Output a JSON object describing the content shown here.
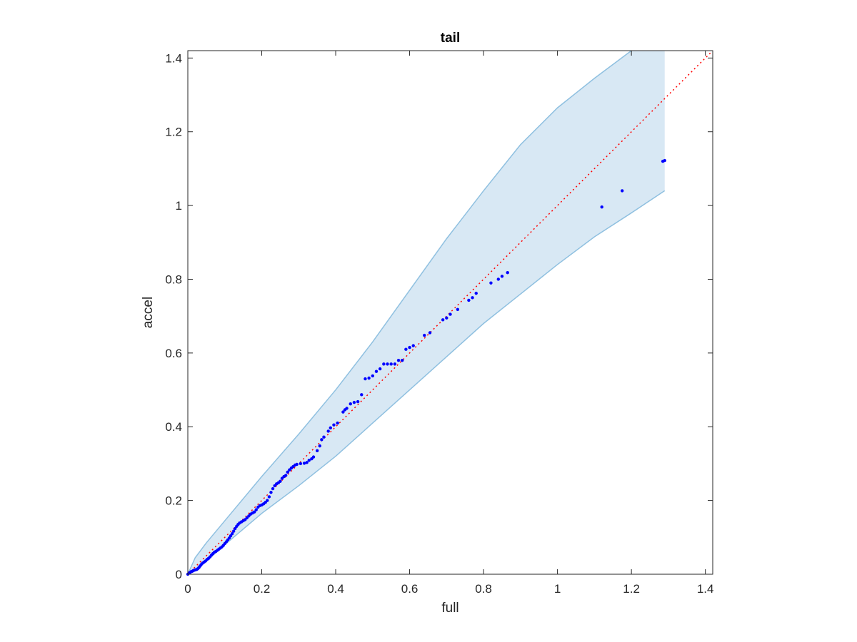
{
  "chart_data": {
    "type": "scatter",
    "title": "tail",
    "xlabel": "full",
    "ylabel": "accel",
    "xlim": [
      0,
      1.42
    ],
    "ylim": [
      0,
      1.42
    ],
    "xticks": [
      0,
      0.2,
      0.4,
      0.6,
      0.8,
      1,
      1.2,
      1.4
    ],
    "yticks": [
      0,
      0.2,
      0.4,
      0.6,
      0.8,
      1,
      1.2,
      1.4
    ],
    "xtick_labels": [
      "0",
      "0.2",
      "0.4",
      "0.6",
      "0.8",
      "1",
      "1.2",
      "1.4"
    ],
    "ytick_labels": [
      "0",
      "0.2",
      "0.4",
      "0.6",
      "0.8",
      "1",
      "1.2",
      "1.4"
    ],
    "grid": false,
    "colors": {
      "points": "#0000ff",
      "reference_line": "#ff0000",
      "band_fill": "#d8e8f4",
      "band_edge": "#8fc0e0",
      "axes": "#262626"
    },
    "band": {
      "upper": [
        [
          0,
          0
        ],
        [
          0.02,
          0.045
        ],
        [
          0.05,
          0.085
        ],
        [
          0.1,
          0.145
        ],
        [
          0.2,
          0.265
        ],
        [
          0.3,
          0.38
        ],
        [
          0.4,
          0.5
        ],
        [
          0.5,
          0.63
        ],
        [
          0.6,
          0.77
        ],
        [
          0.7,
          0.91
        ],
        [
          0.8,
          1.04
        ],
        [
          0.9,
          1.165
        ],
        [
          1.0,
          1.265
        ],
        [
          1.1,
          1.345
        ],
        [
          1.2,
          1.42
        ],
        [
          1.29,
          1.42
        ]
      ],
      "lower": [
        [
          0,
          0
        ],
        [
          0.02,
          0.012
        ],
        [
          0.05,
          0.035
        ],
        [
          0.1,
          0.08
        ],
        [
          0.2,
          0.165
        ],
        [
          0.3,
          0.24
        ],
        [
          0.4,
          0.32
        ],
        [
          0.5,
          0.41
        ],
        [
          0.6,
          0.5
        ],
        [
          0.7,
          0.59
        ],
        [
          0.8,
          0.68
        ],
        [
          0.9,
          0.76
        ],
        [
          1.0,
          0.84
        ],
        [
          1.1,
          0.915
        ],
        [
          1.2,
          0.98
        ],
        [
          1.29,
          1.04
        ]
      ]
    },
    "reference_line": [
      [
        0,
        0
      ],
      [
        1.42,
        1.42
      ]
    ],
    "points": [
      [
        0.0,
        0.0
      ],
      [
        0.003,
        0.003
      ],
      [
        0.006,
        0.005
      ],
      [
        0.009,
        0.007
      ],
      [
        0.012,
        0.008
      ],
      [
        0.015,
        0.01
      ],
      [
        0.018,
        0.011
      ],
      [
        0.021,
        0.012
      ],
      [
        0.024,
        0.013
      ],
      [
        0.027,
        0.015
      ],
      [
        0.03,
        0.018
      ],
      [
        0.033,
        0.022
      ],
      [
        0.036,
        0.026
      ],
      [
        0.04,
        0.03
      ],
      [
        0.044,
        0.033
      ],
      [
        0.048,
        0.036
      ],
      [
        0.052,
        0.04
      ],
      [
        0.056,
        0.043
      ],
      [
        0.06,
        0.047
      ],
      [
        0.064,
        0.052
      ],
      [
        0.068,
        0.056
      ],
      [
        0.072,
        0.06
      ],
      [
        0.076,
        0.062
      ],
      [
        0.08,
        0.065
      ],
      [
        0.084,
        0.068
      ],
      [
        0.088,
        0.071
      ],
      [
        0.092,
        0.074
      ],
      [
        0.096,
        0.078
      ],
      [
        0.1,
        0.083
      ],
      [
        0.104,
        0.088
      ],
      [
        0.108,
        0.093
      ],
      [
        0.112,
        0.098
      ],
      [
        0.116,
        0.104
      ],
      [
        0.12,
        0.11
      ],
      [
        0.124,
        0.117
      ],
      [
        0.128,
        0.124
      ],
      [
        0.132,
        0.13
      ],
      [
        0.136,
        0.135
      ],
      [
        0.14,
        0.139
      ],
      [
        0.145,
        0.142
      ],
      [
        0.15,
        0.145
      ],
      [
        0.155,
        0.148
      ],
      [
        0.16,
        0.153
      ],
      [
        0.165,
        0.158
      ],
      [
        0.17,
        0.163
      ],
      [
        0.175,
        0.166
      ],
      [
        0.18,
        0.169
      ],
      [
        0.185,
        0.175
      ],
      [
        0.19,
        0.182
      ],
      [
        0.195,
        0.186
      ],
      [
        0.2,
        0.188
      ],
      [
        0.205,
        0.191
      ],
      [
        0.21,
        0.195
      ],
      [
        0.215,
        0.2
      ],
      [
        0.22,
        0.21
      ],
      [
        0.225,
        0.222
      ],
      [
        0.23,
        0.232
      ],
      [
        0.235,
        0.24
      ],
      [
        0.24,
        0.245
      ],
      [
        0.245,
        0.248
      ],
      [
        0.25,
        0.252
      ],
      [
        0.255,
        0.26
      ],
      [
        0.26,
        0.265
      ],
      [
        0.265,
        0.268
      ],
      [
        0.27,
        0.277
      ],
      [
        0.275,
        0.283
      ],
      [
        0.28,
        0.288
      ],
      [
        0.285,
        0.292
      ],
      [
        0.29,
        0.296
      ],
      [
        0.295,
        0.298
      ],
      [
        0.305,
        0.3
      ],
      [
        0.315,
        0.301
      ],
      [
        0.322,
        0.303
      ],
      [
        0.328,
        0.309
      ],
      [
        0.335,
        0.313
      ],
      [
        0.34,
        0.318
      ],
      [
        0.35,
        0.335
      ],
      [
        0.357,
        0.348
      ],
      [
        0.362,
        0.365
      ],
      [
        0.368,
        0.372
      ],
      [
        0.38,
        0.388
      ],
      [
        0.386,
        0.397
      ],
      [
        0.395,
        0.405
      ],
      [
        0.405,
        0.41
      ],
      [
        0.42,
        0.44
      ],
      [
        0.425,
        0.446
      ],
      [
        0.43,
        0.45
      ],
      [
        0.44,
        0.462
      ],
      [
        0.45,
        0.466
      ],
      [
        0.46,
        0.468
      ],
      [
        0.47,
        0.487
      ],
      [
        0.48,
        0.53
      ],
      [
        0.49,
        0.532
      ],
      [
        0.5,
        0.538
      ],
      [
        0.51,
        0.55
      ],
      [
        0.52,
        0.557
      ],
      [
        0.53,
        0.57
      ],
      [
        0.54,
        0.57
      ],
      [
        0.55,
        0.57
      ],
      [
        0.56,
        0.57
      ],
      [
        0.57,
        0.58
      ],
      [
        0.58,
        0.58
      ],
      [
        0.59,
        0.61
      ],
      [
        0.6,
        0.615
      ],
      [
        0.61,
        0.62
      ],
      [
        0.64,
        0.648
      ],
      [
        0.655,
        0.655
      ],
      [
        0.69,
        0.69
      ],
      [
        0.7,
        0.695
      ],
      [
        0.71,
        0.705
      ],
      [
        0.73,
        0.718
      ],
      [
        0.76,
        0.743
      ],
      [
        0.77,
        0.75
      ],
      [
        0.78,
        0.762
      ],
      [
        0.82,
        0.79
      ],
      [
        0.84,
        0.8
      ],
      [
        0.85,
        0.808
      ],
      [
        0.865,
        0.818
      ],
      [
        1.12,
        0.996
      ],
      [
        1.175,
        1.04
      ],
      [
        1.285,
        1.12
      ],
      [
        1.29,
        1.122
      ]
    ]
  }
}
